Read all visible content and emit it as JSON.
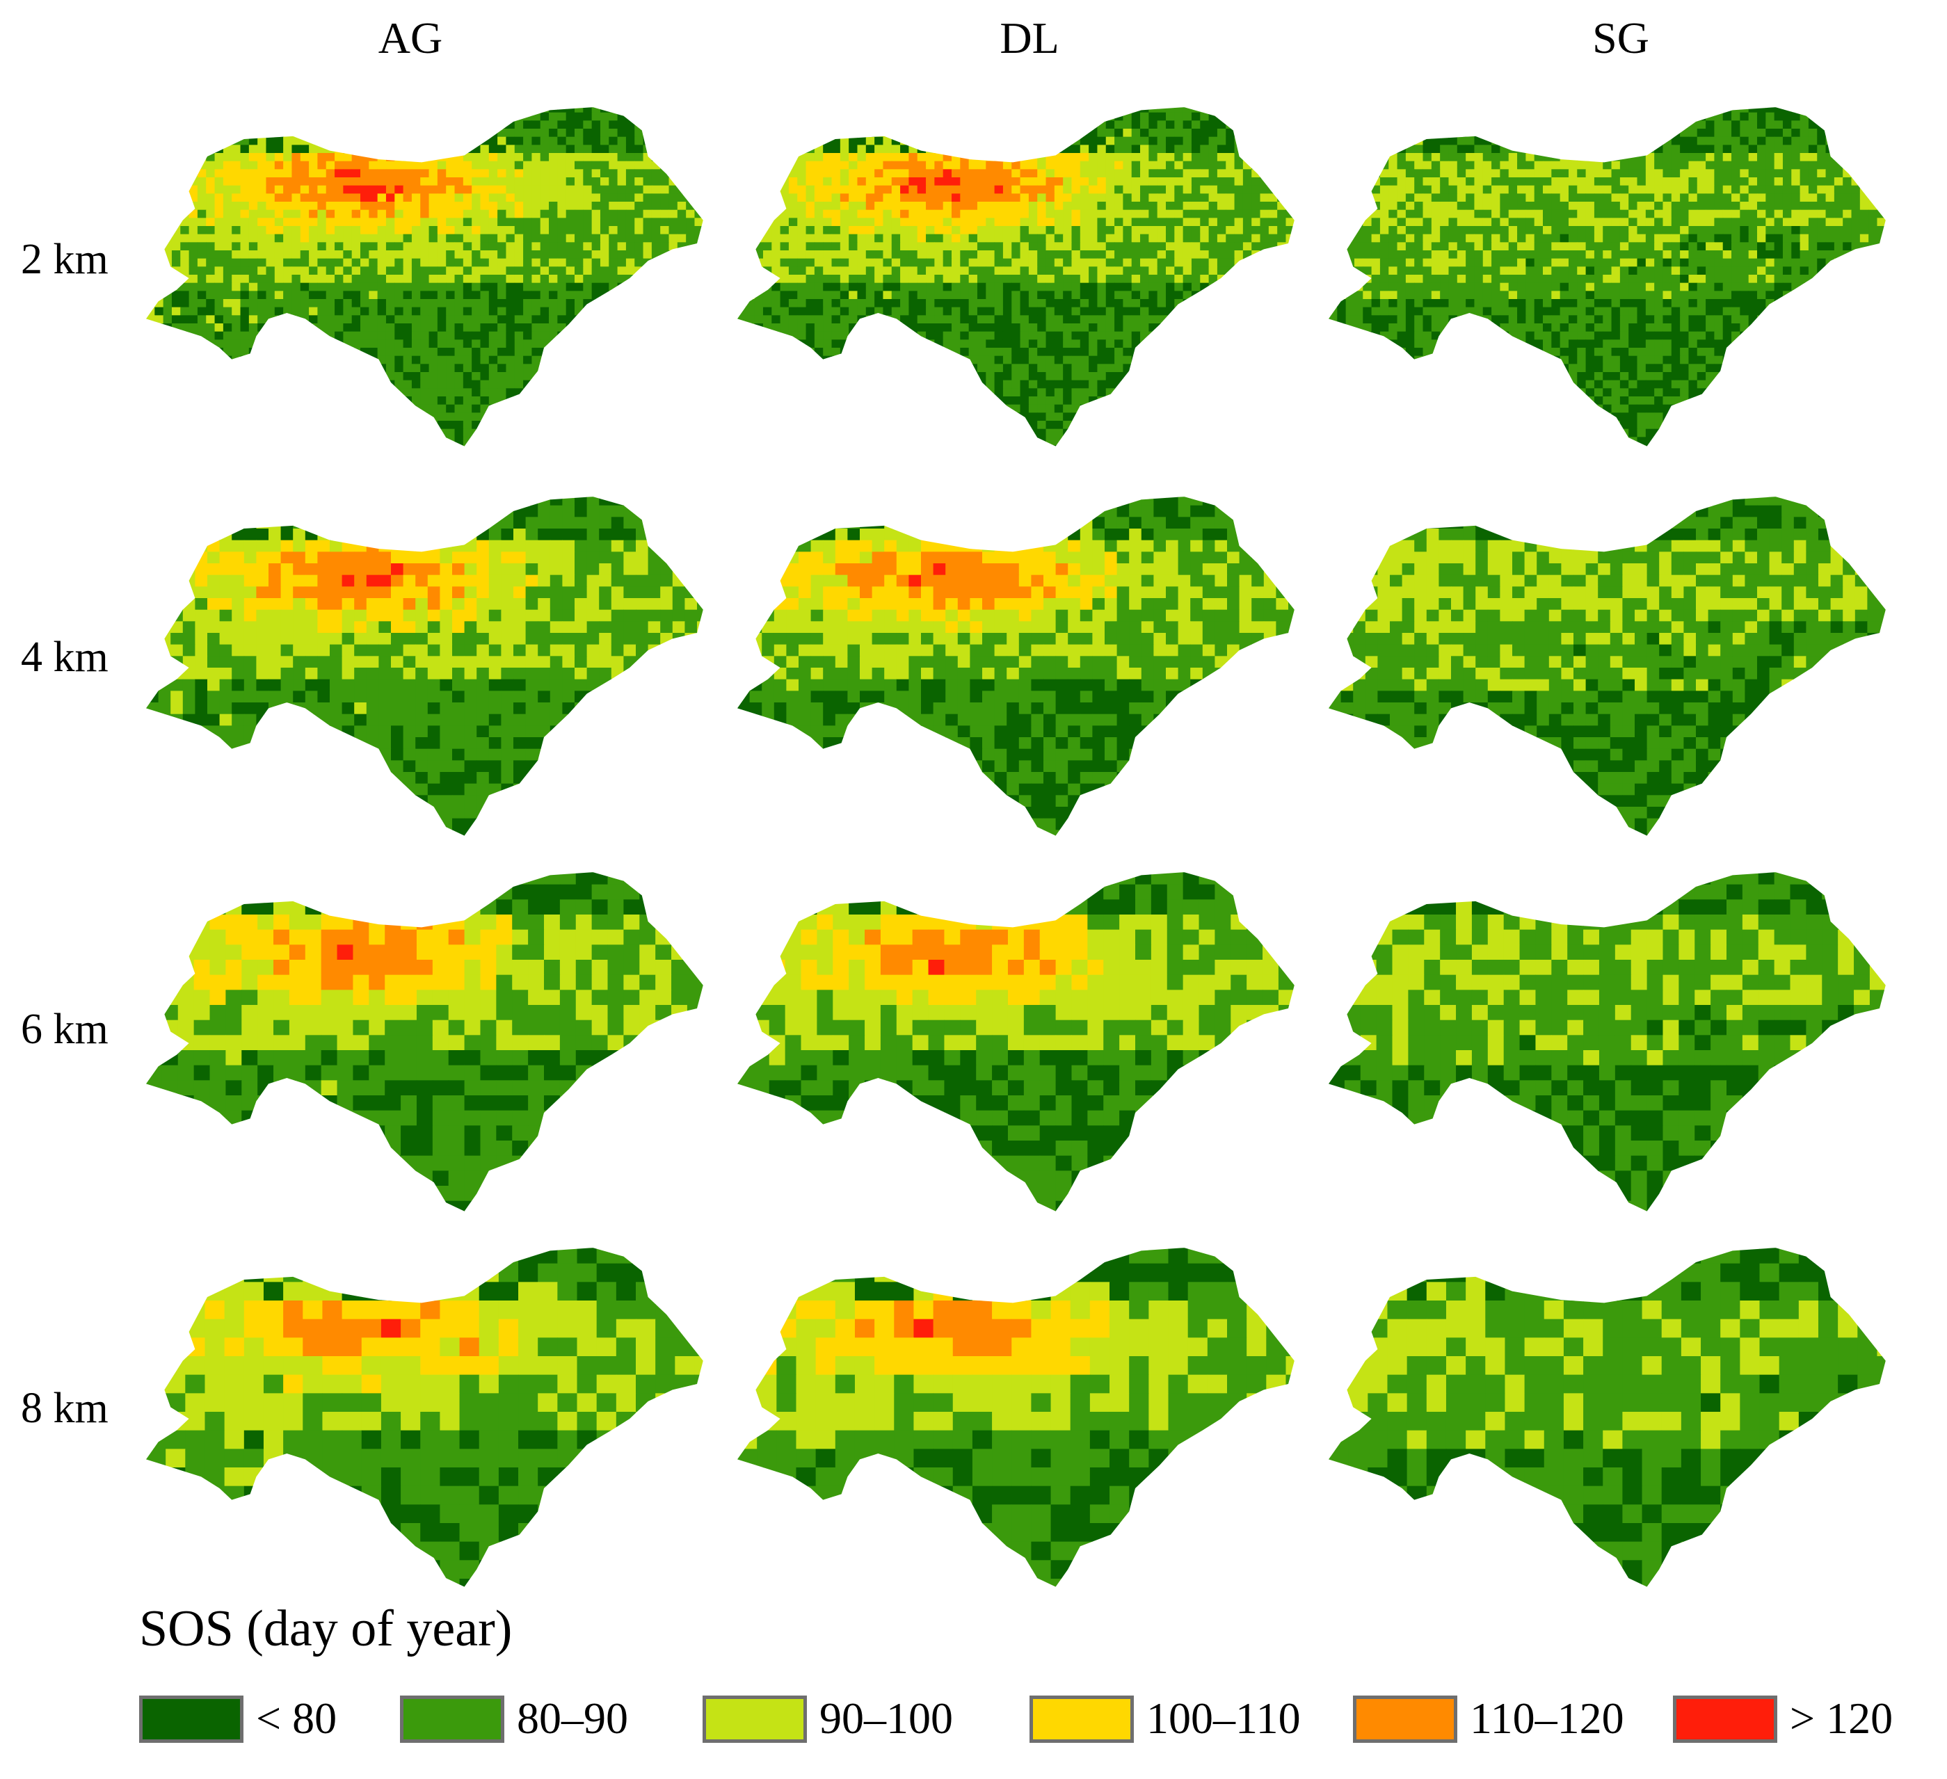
{
  "columns": [
    {
      "id": "ag",
      "label": "AG"
    },
    {
      "id": "dl",
      "label": "DL"
    },
    {
      "id": "sg",
      "label": "SG"
    }
  ],
  "rows": [
    {
      "id": "2km",
      "label": "2 km"
    },
    {
      "id": "4km",
      "label": "4 km"
    },
    {
      "id": "6km",
      "label": "6 km"
    },
    {
      "id": "8km",
      "label": "8 km"
    }
  ],
  "legend": {
    "title": "SOS (day of year)",
    "classes": [
      {
        "label": "< 80",
        "color": "#0a6400"
      },
      {
        "label": "80–90",
        "color": "#3b9a0c"
      },
      {
        "label": "90–100",
        "color": "#c5e315"
      },
      {
        "label": "100–110",
        "color": "#ffd800"
      },
      {
        "label": "110–120",
        "color": "#ff8a00"
      },
      {
        "label": "> 120",
        "color": "#ff1e0a"
      }
    ]
  }
}
